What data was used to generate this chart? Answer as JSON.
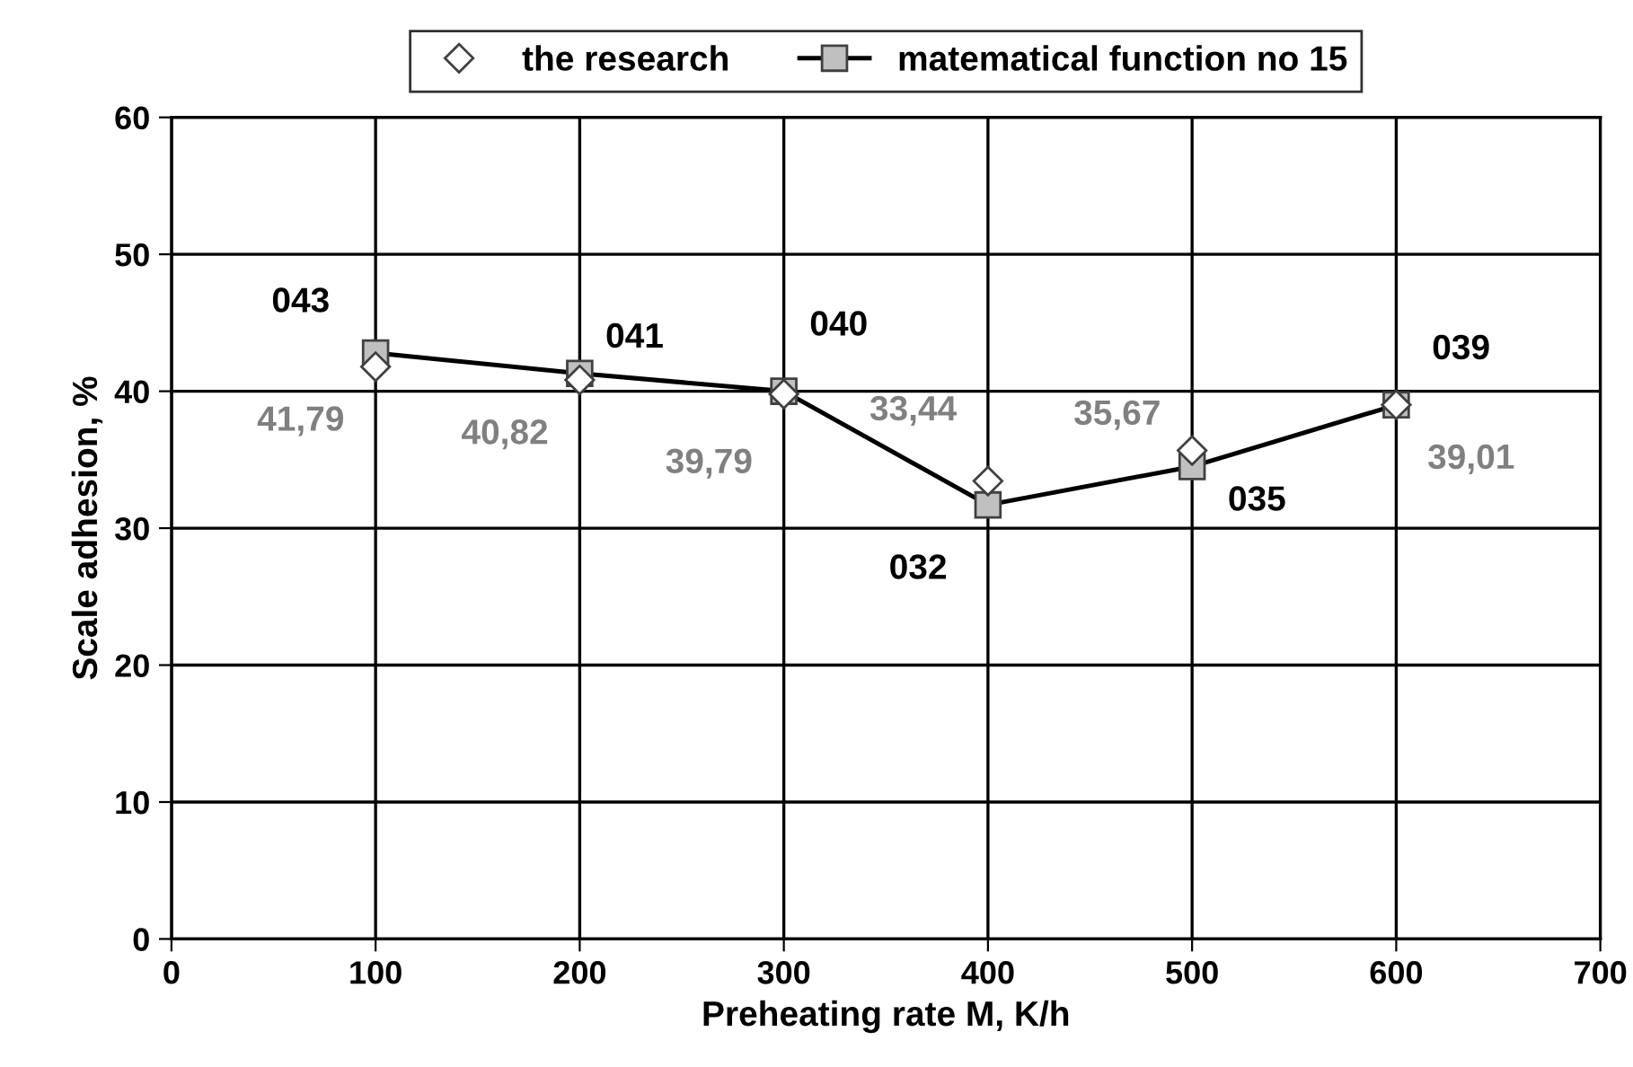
{
  "chart_data": {
    "type": "line",
    "x": [
      100,
      200,
      300,
      400,
      500,
      600
    ],
    "xlabel": "Preheating rate M, K/h",
    "ylabel": "Scale adhesion, %",
    "xlim": [
      0,
      700
    ],
    "xticks": [
      0,
      100,
      200,
      300,
      400,
      500,
      600,
      700
    ],
    "ylim": [
      0,
      60
    ],
    "yticks": [
      0,
      10,
      20,
      30,
      40,
      50,
      60
    ],
    "grid": true,
    "legend": "top",
    "series": [
      {
        "name": "the research",
        "type": "scatter",
        "marker": "diamond",
        "color": "#ffffff",
        "values": [
          41.79,
          40.82,
          39.79,
          33.44,
          35.67,
          39.01
        ],
        "value_labels": [
          "41,79",
          "40,82",
          "39,79",
          "33,44",
          "35,67",
          "39,01"
        ]
      },
      {
        "name": "matematical function no 15",
        "type": "line",
        "marker": "square",
        "color": "#000000",
        "values": [
          42.8,
          41.3,
          40.0,
          31.7,
          34.5,
          39.0
        ],
        "value_labels": [
          "043",
          "041",
          "040",
          "032",
          "035",
          "039"
        ]
      }
    ]
  }
}
